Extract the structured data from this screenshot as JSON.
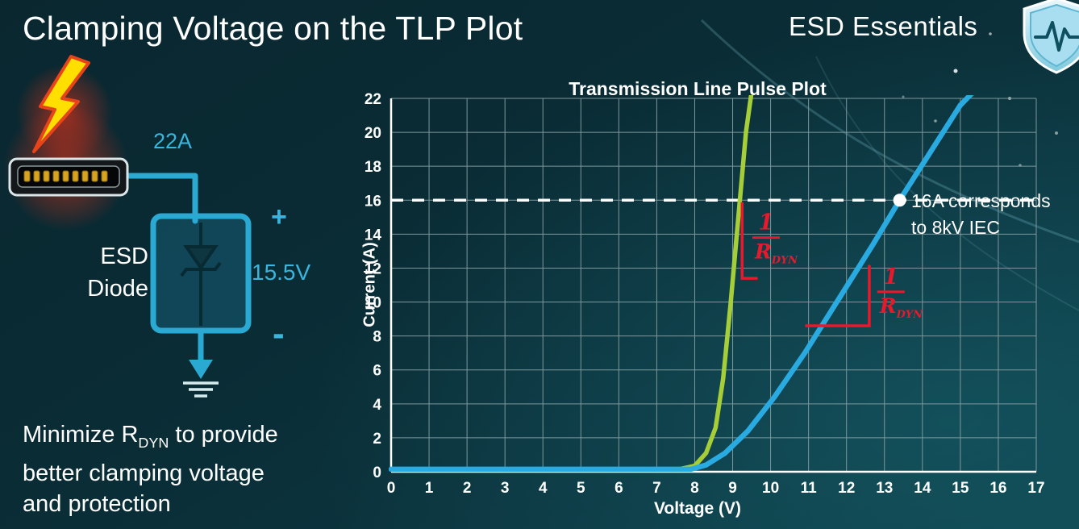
{
  "slide": {
    "title": "Clamping Voltage on the TLP Plot",
    "brand": "ESD Essentials"
  },
  "diagram": {
    "surge_current_label": "22A",
    "device_label_line1": "ESD",
    "device_label_line2": "Diode",
    "plus_label": "+",
    "clamp_voltage_label": "15.5V",
    "minus_label": "-",
    "accent_color": "#3ab5dd"
  },
  "caption": {
    "line1_pre": "Minimize R",
    "line1_sub": "DYN",
    "line1_post": " to provide",
    "line2": "better clamping voltage",
    "line3": "and protection"
  },
  "chart_data": {
    "type": "line",
    "title": "Transmission Line Pulse Plot",
    "xlabel": "Voltage (V)",
    "ylabel": "Current (A)",
    "xlim": [
      0,
      17
    ],
    "ylim": [
      0,
      22
    ],
    "x_ticks": [
      0,
      1,
      2,
      3,
      4,
      5,
      6,
      7,
      8,
      9,
      10,
      11,
      12,
      13,
      14,
      15,
      16,
      17
    ],
    "y_ticks": [
      0,
      2,
      4,
      6,
      8,
      10,
      12,
      14,
      16,
      18,
      20,
      22
    ],
    "grid": true,
    "legend": "none",
    "colors": {
      "grid": "#7d989c",
      "axis": "#ffffff",
      "green": "#a6ce39",
      "blue": "#29abe2",
      "red": "#e8192c",
      "marker": "#ffffff"
    },
    "series": [
      {
        "name": "green curve (steep clamp, low dynamic resistance)",
        "color": "#a6ce39",
        "width": 5.5,
        "points": [
          [
            0,
            0.15
          ],
          [
            7.6,
            0.15
          ],
          [
            8.0,
            0.35
          ],
          [
            8.3,
            1.1
          ],
          [
            8.55,
            2.6
          ],
          [
            8.75,
            5.5
          ],
          [
            8.95,
            10
          ],
          [
            9.15,
            15
          ],
          [
            9.35,
            20
          ],
          [
            9.5,
            22.4
          ]
        ]
      },
      {
        "name": "blue curve (shallow clamp, high dynamic resistance)",
        "color": "#29abe2",
        "width": 6.5,
        "points": [
          [
            0,
            0.15
          ],
          [
            7.9,
            0.15
          ],
          [
            8.3,
            0.4
          ],
          [
            8.8,
            1.1
          ],
          [
            9.4,
            2.4
          ],
          [
            10.1,
            4.4
          ],
          [
            10.9,
            7.0
          ],
          [
            11.8,
            10.2
          ],
          [
            12.7,
            13.4
          ],
          [
            13.4,
            16
          ],
          [
            14.2,
            18.8
          ],
          [
            15.0,
            21.6
          ],
          [
            15.35,
            22.4
          ]
        ]
      }
    ],
    "reference_line": {
      "y": 16,
      "style": "dashed",
      "color": "#ffffff"
    },
    "marker_point": {
      "x": 13.4,
      "y": 16,
      "color": "#ffffff"
    },
    "callout": {
      "line1": "16A corresponds",
      "line2": "to 8kV IEC"
    },
    "slope_markers": [
      {
        "path": [
          [
            9.62,
            11.4
          ],
          [
            9.25,
            11.4
          ],
          [
            9.25,
            15.8
          ]
        ],
        "label_x": 9.88,
        "label_y": 13.8
      },
      {
        "path": [
          [
            10.95,
            8.6
          ],
          [
            12.6,
            8.6
          ],
          [
            12.6,
            12.1
          ]
        ],
        "label_x": 13.17,
        "label_y": 10.6
      }
    ],
    "slope_label": {
      "numerator": "1",
      "denominator_base": "R",
      "denominator_sub": "DYN"
    }
  }
}
